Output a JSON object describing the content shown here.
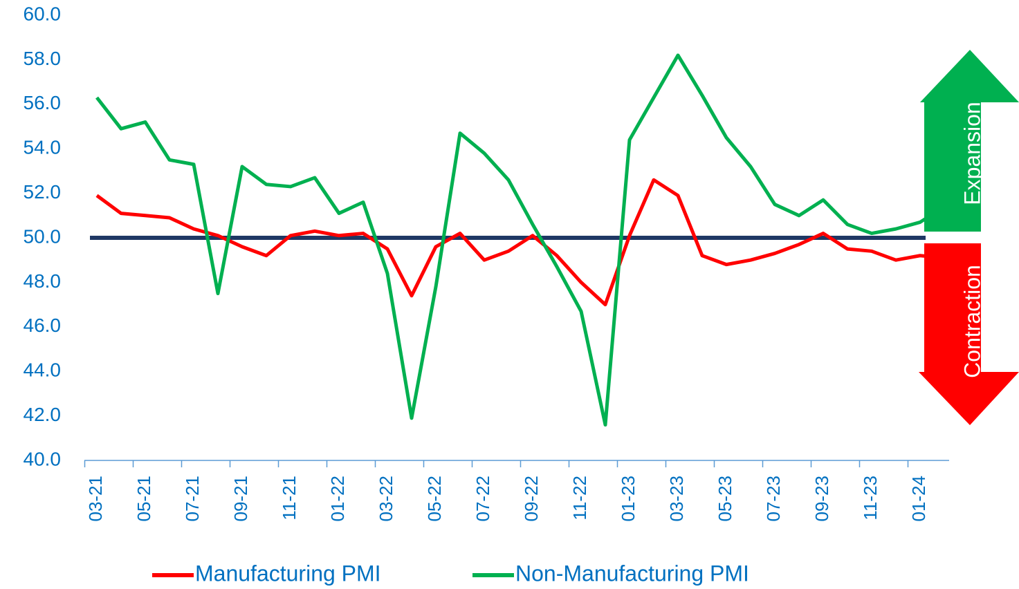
{
  "chart_data": {
    "type": "line",
    "categories": [
      "03-21",
      null,
      "05-21",
      null,
      "07-21",
      null,
      "09-21",
      null,
      "11-21",
      null,
      "01-22",
      null,
      "03-22",
      null,
      "05-22",
      null,
      "07-22",
      null,
      "09-22",
      null,
      "11-22",
      null,
      "01-23",
      null,
      "03-23",
      null,
      "05-23",
      null,
      "07-23",
      null,
      "09-23",
      null,
      "11-23",
      null,
      "01-24",
      null
    ],
    "series": [
      {
        "name": "Manufacturing PMI",
        "color": "#ff0000",
        "values": [
          51.9,
          51.1,
          51.0,
          50.9,
          50.4,
          50.1,
          49.6,
          49.2,
          50.1,
          50.3,
          50.1,
          50.2,
          49.5,
          47.4,
          49.6,
          50.2,
          49.0,
          49.4,
          50.1,
          49.2,
          48.0,
          47.0,
          50.1,
          52.6,
          51.9,
          49.2,
          48.8,
          49.0,
          49.3,
          49.7,
          50.2,
          49.5,
          49.4,
          49.0,
          49.2,
          49.1
        ]
      },
      {
        "name": "Non-Manufacturing PMI",
        "color": "#00b050",
        "values": [
          56.3,
          54.9,
          55.2,
          53.5,
          53.3,
          47.5,
          53.2,
          52.4,
          52.3,
          52.7,
          51.1,
          51.6,
          48.4,
          41.9,
          47.8,
          54.7,
          53.8,
          52.6,
          50.6,
          48.7,
          46.7,
          41.6,
          54.4,
          56.3,
          58.2,
          56.4,
          54.5,
          53.2,
          51.5,
          51.0,
          51.7,
          50.6,
          50.2,
          50.4,
          50.7,
          51.4
        ]
      }
    ],
    "ylim": [
      40,
      60
    ],
    "yticks": [
      {
        "value": 40,
        "label": "40.0"
      },
      {
        "value": 42,
        "label": "42.0"
      },
      {
        "value": 44,
        "label": "44.0"
      },
      {
        "value": 46,
        "label": "46.0"
      },
      {
        "value": 48,
        "label": "48.0"
      },
      {
        "value": 50,
        "label": "50.0"
      },
      {
        "value": 52,
        "label": "52.0"
      },
      {
        "value": 54,
        "label": "54.0"
      },
      {
        "value": 56,
        "label": "56.0"
      },
      {
        "value": 58,
        "label": "58.0"
      },
      {
        "value": 60,
        "label": "60.0"
      }
    ],
    "reference_line": {
      "value": 50,
      "color": "#1f3864"
    },
    "annotations": [
      "Expansion",
      "Contraction"
    ],
    "legend": "bottom"
  }
}
